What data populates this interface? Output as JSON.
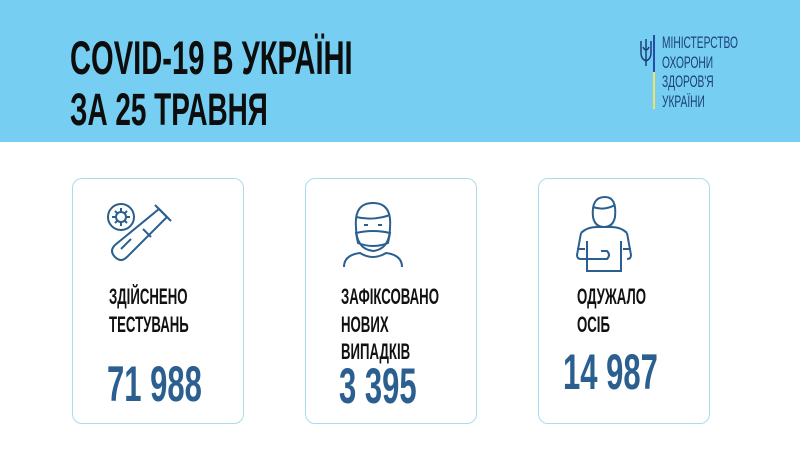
{
  "header": {
    "title_line1": "COVID-19 В УКРАЇНІ",
    "title_line2": "ЗА 25 ТРАВНЯ",
    "background_color": "#76cff2"
  },
  "ministry": {
    "lines": [
      "МІНІСТЕРСТВО",
      "ОХОРОНИ",
      "ЗДОРОВ'Я",
      "УКРАЇНИ"
    ],
    "emblem_icon": "trident-icon"
  },
  "stats": [
    {
      "icon": "test-tube-icon",
      "label_lines": [
        "ЗДІЙСНЕНО",
        "ТЕСТУВАНЬ"
      ],
      "value": "71 988"
    },
    {
      "icon": "masked-person-icon",
      "label_lines": [
        "ЗАФІКСОВАНО",
        "НОВИХ",
        "ВИПАДКІВ"
      ],
      "value": "3 395"
    },
    {
      "icon": "recovered-person-icon",
      "label_lines": [
        "ОДУЖАЛО",
        "ОСІБ"
      ],
      "value": "14 987"
    }
  ],
  "colors": {
    "number": "#2a5f8f",
    "card_border": "#a9dced",
    "icon": "#2a5f8f"
  }
}
